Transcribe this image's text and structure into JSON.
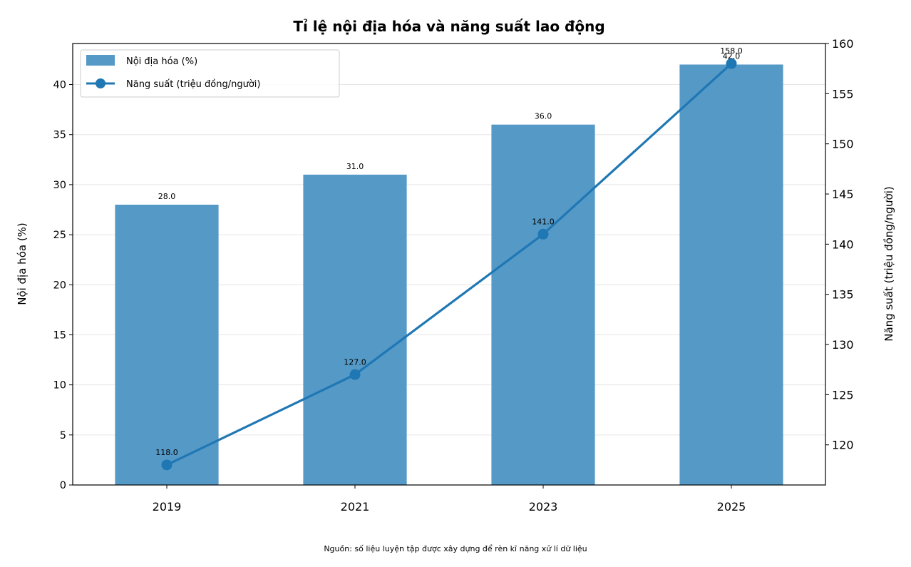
{
  "chart_data": {
    "type": "bar",
    "title": "Tỉ lệ nội địa hóa và năng suất lao động",
    "categories": [
      "2019",
      "2021",
      "2023",
      "2025"
    ],
    "series": [
      {
        "name": "Nội địa hóa (%)",
        "type": "bar",
        "axis": "left",
        "values": [
          28.0,
          31.0,
          36.0,
          42.0
        ],
        "color": "#5599c7"
      },
      {
        "name": "Năng suất (triệu đồng/người)",
        "type": "line",
        "axis": "right",
        "values": [
          118.0,
          127.0,
          141.0,
          158.0
        ],
        "color": "#1f77b4"
      }
    ],
    "ylabel": "Nội địa hóa (%)",
    "y2label": "Năng suất (triệu đồng/người)",
    "ylim": [
      0,
      44.1
    ],
    "y2lim": [
      116.0,
      160.0
    ],
    "yticks": [
      "0",
      "5",
      "10",
      "15",
      "20",
      "25",
      "30",
      "35",
      "40"
    ],
    "y2ticks": [
      "120",
      "125",
      "130",
      "135",
      "140",
      "145",
      "150",
      "155",
      "160"
    ],
    "data_labels_bar": [
      "28.0",
      "31.0",
      "36.0",
      "42.0"
    ],
    "data_labels_line": [
      "118.0",
      "127.0",
      "141.0",
      "158.0"
    ],
    "grid": "horizontal",
    "legend_position": "top-left",
    "source_note": "Nguồn: số liệu luyện tập được xây dựng để rèn kĩ năng xử lí dữ liệu"
  }
}
